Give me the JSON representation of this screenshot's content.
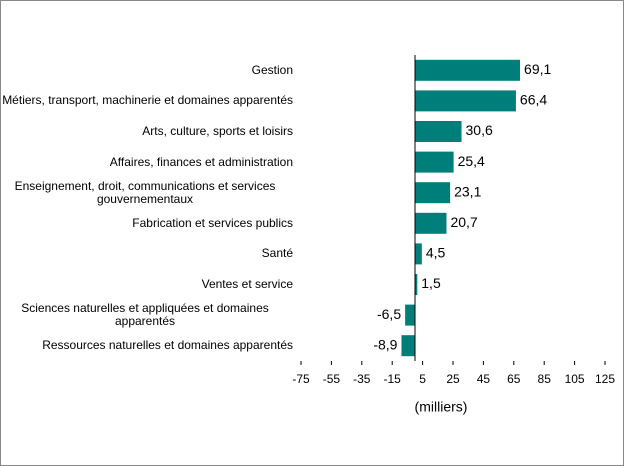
{
  "chart_data": {
    "type": "hbar",
    "categories": [
      "Gestion",
      "Métiers, transport, machinerie et domaines apparentés",
      "Arts, culture, sports et loisirs",
      "Affaires, finances et administration",
      "Enseignement, droit, communications et services gouvernementaux",
      "Fabrication et services publics",
      "Santé",
      "Ventes et service",
      "Sciences naturelles et appliquées et domaines apparentés",
      "Ressources naturelles et domaines apparentés"
    ],
    "values": [
      69.1,
      66.4,
      30.6,
      25.4,
      23.1,
      20.7,
      4.5,
      1.5,
      -6.5,
      -8.9
    ],
    "value_labels": [
      "69,1",
      "66,4",
      "30,6",
      "25,4",
      "23,1",
      "20,7",
      "4,5",
      "1,5",
      "-6,5",
      "-8,9"
    ],
    "color": "#007f7a",
    "xlim": [
      -75,
      125
    ],
    "xticks": [
      -75,
      -55,
      -35,
      -15,
      5,
      25,
      45,
      65,
      85,
      105,
      125
    ],
    "xlabel": "(milliers)"
  }
}
